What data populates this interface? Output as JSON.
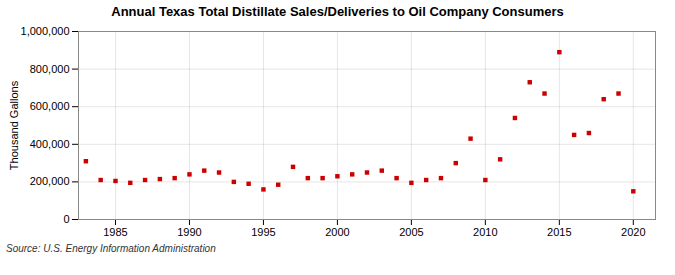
{
  "chart_data": {
    "type": "scatter",
    "title": "Annual Texas Total Distillate Sales/Deliveries to Oil Company Consumers",
    "ylabel": "Thousand Gallons",
    "source": "Source: U.S. Energy Information Administration",
    "x": [
      1983,
      1984,
      1985,
      1986,
      1987,
      1988,
      1989,
      1990,
      1991,
      1992,
      1993,
      1994,
      1995,
      1996,
      1997,
      1998,
      1999,
      2000,
      2001,
      2002,
      2003,
      2004,
      2005,
      2006,
      2007,
      2008,
      2009,
      2010,
      2011,
      2012,
      2013,
      2014,
      2015,
      2016,
      2017,
      2018,
      2019,
      2020
    ],
    "values": [
      310000,
      210000,
      205000,
      195000,
      210000,
      215000,
      220000,
      240000,
      260000,
      250000,
      200000,
      190000,
      160000,
      185000,
      280000,
      220000,
      220000,
      230000,
      240000,
      250000,
      260000,
      220000,
      195000,
      210000,
      220000,
      300000,
      430000,
      210000,
      320000,
      540000,
      730000,
      670000,
      890000,
      450000,
      460000,
      640000,
      670000,
      150000
    ],
    "color": "#cc0000",
    "marker": "square",
    "xlim": [
      1982.5,
      2021.5
    ],
    "ylim": [
      0,
      1000000
    ],
    "xticks": [
      1985,
      1990,
      1995,
      2000,
      2005,
      2010,
      2015,
      2020
    ],
    "yticks": [
      0,
      {
        "value": 200000,
        "label": "200,000"
      },
      {
        "value": 400000,
        "label": "400,000"
      },
      {
        "value": 600000,
        "label": "600,000"
      },
      {
        "value": 800000,
        "label": "800,000"
      },
      {
        "value": 1000000,
        "label": "1,000,000"
      }
    ],
    "grid": true
  }
}
